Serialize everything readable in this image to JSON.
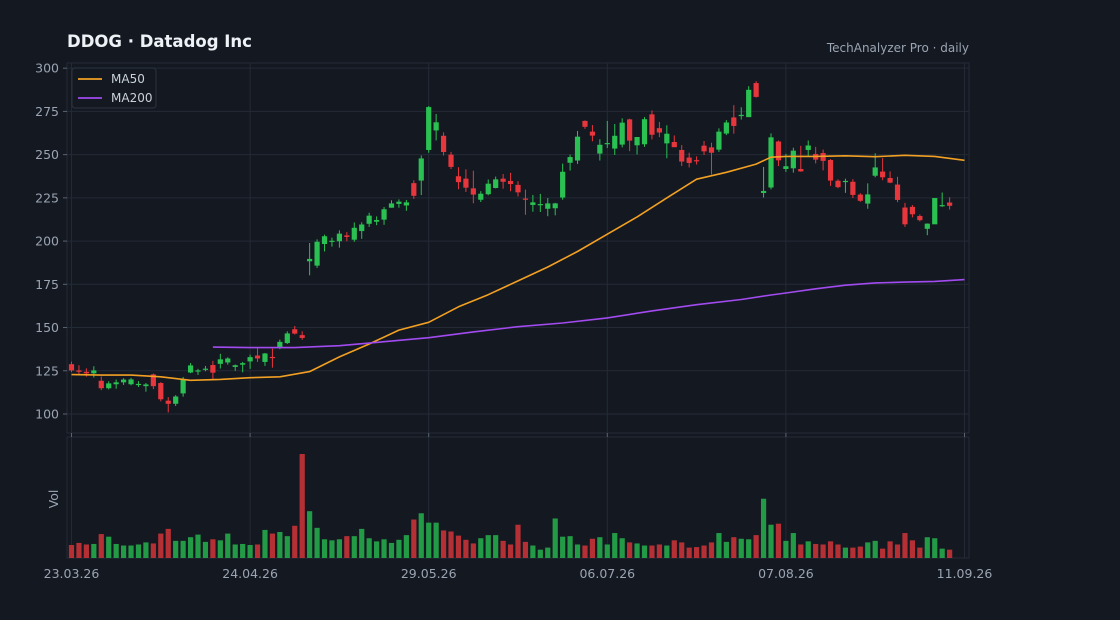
{
  "header": {
    "title": "DDOG  ·  Datadog Inc",
    "source": "TechAnalyzer Pro · daily"
  },
  "colors": {
    "background": "#141821",
    "up": "#2ac152",
    "down": "#e8363d",
    "up_volume": "#239a45",
    "down_volume": "#b53035",
    "ma50": "#f2a023",
    "ma200": "#a24bf0",
    "grid": "#232a36"
  },
  "chart_data": {
    "type": "candlestick",
    "title": "DDOG  ·  Datadog Inc",
    "y_ticks": [
      100,
      125,
      150,
      175,
      200,
      225,
      250,
      275,
      300
    ],
    "ylim": [
      89,
      303
    ],
    "volume_label": "Vol",
    "x_tick_labels": [
      "23.03.26",
      "24.04.26",
      "29.05.26",
      "06.07.26",
      "07.08.26",
      "11.09.26"
    ],
    "x_tick_index": [
      0,
      24,
      48,
      72,
      96,
      120
    ],
    "legend": [
      "MA50",
      "MA200"
    ],
    "legend_position": "top-left",
    "grid": true,
    "ohlc": [
      [
        128.8,
        130.3,
        124.2,
        125.2
      ],
      [
        125.2,
        128.2,
        122.3,
        124.4
      ],
      [
        124.4,
        126.4,
        121.6,
        123.5
      ],
      [
        123.5,
        127.6,
        121.1,
        125.2
      ],
      [
        119.2,
        121.7,
        113.8,
        114.9
      ],
      [
        114.9,
        118.9,
        114.2,
        117.7
      ],
      [
        117.2,
        119.9,
        114.6,
        118.3
      ],
      [
        118.3,
        120.7,
        116.8,
        119.9
      ],
      [
        117.2,
        120.9,
        116.6,
        120.0
      ],
      [
        117.2,
        119.0,
        115.6,
        117.4
      ],
      [
        116.1,
        117.9,
        112.9,
        117.1
      ],
      [
        122.9,
        123.4,
        114.4,
        116.1
      ],
      [
        117.9,
        118.4,
        107.3,
        108.5
      ],
      [
        107.7,
        109.7,
        100.9,
        105.9
      ],
      [
        105.9,
        110.9,
        104.6,
        110.1
      ],
      [
        111.9,
        121.4,
        110.0,
        119.8
      ],
      [
        124.0,
        129.5,
        123.6,
        128.1
      ],
      [
        124.5,
        126.1,
        122.6,
        125.2
      ],
      [
        126.2,
        127.8,
        124.7,
        126.2
      ],
      [
        128.3,
        130.7,
        119.9,
        123.9
      ],
      [
        129.0,
        134.8,
        126.3,
        131.6
      ],
      [
        129.8,
        132.8,
        128.5,
        132.1
      ],
      [
        127.2,
        128.6,
        124.9,
        128.2
      ],
      [
        128.5,
        130.1,
        124.1,
        129.4
      ],
      [
        130.4,
        134.3,
        126.1,
        132.9
      ],
      [
        133.8,
        138.6,
        130.1,
        132.1
      ],
      [
        130.1,
        135.3,
        127.8,
        135.0
      ],
      [
        133.0,
        137.8,
        126.8,
        132.7
      ],
      [
        138.4,
        143.0,
        137.5,
        141.7
      ],
      [
        141.0,
        147.8,
        140.5,
        146.6
      ],
      [
        149.0,
        150.9,
        146.0,
        146.5
      ],
      [
        145.6,
        147.8,
        142.9,
        144.0
      ],
      [
        188.3,
        198.9,
        180.2,
        189.7
      ],
      [
        185.8,
        201.0,
        184.5,
        199.6
      ],
      [
        198.3,
        203.7,
        194.0,
        202.8
      ],
      [
        200.0,
        202.0,
        196.8,
        200.2
      ],
      [
        199.9,
        206.2,
        196.2,
        204.3
      ],
      [
        203.3,
        205.2,
        199.9,
        202.4
      ],
      [
        200.8,
        210.8,
        199.6,
        207.7
      ],
      [
        205.8,
        210.9,
        201.3,
        209.6
      ],
      [
        210.0,
        216.4,
        208.2,
        214.7
      ],
      [
        211.2,
        214.3,
        209.2,
        212.2
      ],
      [
        212.4,
        219.7,
        209.4,
        218.4
      ],
      [
        219.3,
        223.6,
        219.3,
        221.8
      ],
      [
        221.5,
        224.1,
        219.3,
        222.8
      ],
      [
        220.6,
        223.8,
        217.5,
        222.4
      ],
      [
        233.5,
        235.2,
        224.4,
        226.2
      ],
      [
        235.0,
        249.5,
        226.6,
        247.8
      ],
      [
        252.7,
        278.1,
        251.1,
        277.5
      ],
      [
        264.0,
        273.5,
        258.2,
        268.7
      ],
      [
        260.9,
        262.9,
        249.5,
        251.5
      ],
      [
        250.0,
        251.6,
        241.7,
        242.9
      ],
      [
        237.5,
        242.7,
        230.0,
        234.1
      ],
      [
        236.1,
        241.5,
        228.4,
        230.9
      ],
      [
        230.5,
        240.7,
        221.9,
        226.9
      ],
      [
        223.9,
        228.9,
        222.6,
        227.4
      ],
      [
        227.1,
        235.6,
        226.5,
        233.2
      ],
      [
        230.7,
        237.3,
        230.5,
        235.7
      ],
      [
        236.1,
        238.8,
        230.3,
        234.3
      ],
      [
        234.8,
        239.5,
        228.8,
        233.0
      ],
      [
        232.5,
        234.6,
        225.8,
        228.2
      ],
      [
        224.6,
        229.8,
        215.2,
        223.9
      ],
      [
        220.9,
        226.7,
        217.0,
        222.4
      ],
      [
        221.3,
        227.3,
        216.8,
        221.4
      ],
      [
        218.7,
        224.9,
        214.4,
        221.8
      ],
      [
        219.0,
        222.1,
        214.9,
        221.8
      ],
      [
        225.2,
        244.8,
        223.9,
        240.1
      ],
      [
        245.3,
        250.0,
        240.8,
        248.6
      ],
      [
        246.6,
        263.7,
        244.6,
        260.4
      ],
      [
        269.5,
        269.8,
        264.9,
        266.1
      ],
      [
        263.3,
        267.1,
        257.7,
        261.0
      ],
      [
        250.6,
        258.9,
        246.6,
        255.7
      ],
      [
        256.2,
        269.5,
        253.8,
        256.7
      ],
      [
        253.5,
        267.7,
        249.8,
        260.9
      ],
      [
        255.8,
        271.0,
        254.2,
        268.5
      ],
      [
        270.4,
        270.8,
        252.0,
        258.1
      ],
      [
        255.4,
        258.9,
        250.1,
        260.2
      ],
      [
        256.0,
        271.7,
        254.5,
        270.5
      ],
      [
        273.3,
        275.6,
        258.8,
        261.5
      ],
      [
        265.3,
        268.9,
        260.1,
        262.8
      ],
      [
        256.5,
        267.0,
        247.9,
        262.1
      ],
      [
        257.3,
        261.1,
        254.4,
        254.3
      ],
      [
        252.7,
        255.5,
        243.4,
        246.0
      ],
      [
        248.3,
        251.1,
        242.6,
        245.2
      ],
      [
        246.8,
        249.0,
        244.3,
        246.5
      ],
      [
        255.2,
        257.9,
        249.8,
        251.9
      ],
      [
        254.2,
        256.9,
        238.5,
        251.1
      ],
      [
        252.9,
        265.2,
        251.6,
        263.3
      ],
      [
        262.2,
        270.0,
        261.3,
        268.6
      ],
      [
        271.5,
        278.6,
        262.1,
        266.6
      ],
      [
        272.4,
        277.4,
        270.3,
        273.0
      ],
      [
        271.7,
        289.6,
        271.7,
        287.5
      ],
      [
        291.4,
        292.5,
        283.0,
        283.4
      ],
      [
        227.8,
        242.9,
        225.2,
        229.0
      ],
      [
        231.0,
        262.3,
        229.9,
        260.0
      ],
      [
        257.6,
        258.1,
        243.4,
        246.7
      ],
      [
        241.7,
        250.5,
        240.0,
        243.3
      ],
      [
        242.1,
        254.0,
        239.6,
        252.3
      ],
      [
        241.7,
        255.1,
        240.1,
        240.3
      ],
      [
        252.7,
        258.2,
        249.2,
        255.3
      ],
      [
        250.4,
        254.5,
        244.9,
        247.1
      ],
      [
        250.9,
        252.9,
        240.9,
        246.4
      ],
      [
        246.9,
        247.4,
        231.9,
        235.0
      ],
      [
        234.9,
        235.7,
        230.6,
        231.2
      ],
      [
        234.4,
        236.1,
        227.9,
        234.8
      ],
      [
        234.3,
        235.8,
        224.9,
        226.7
      ],
      [
        226.9,
        227.7,
        222.7,
        223.3
      ],
      [
        221.7,
        233.4,
        218.7,
        227.0
      ],
      [
        237.8,
        250.8,
        236.9,
        242.6
      ],
      [
        240.2,
        248.0,
        235.2,
        236.9
      ],
      [
        236.5,
        240.3,
        233.5,
        233.8
      ],
      [
        232.7,
        237.2,
        222.5,
        223.8
      ],
      [
        219.4,
        222.1,
        208.2,
        209.7
      ],
      [
        219.8,
        220.8,
        213.7,
        215.5
      ],
      [
        214.5,
        215.4,
        211.4,
        212.1
      ],
      [
        207.1,
        210.2,
        203.4,
        210.1
      ],
      [
        209.7,
        224.7,
        210.1,
        224.9
      ],
      [
        220.7,
        228.1,
        219.8,
        220.8
      ],
      [
        222.3,
        225.3,
        218.2,
        220.4
      ]
    ],
    "volume": [
      0.125,
      0.145,
      0.13,
      0.135,
      0.23,
      0.205,
      0.135,
      0.12,
      0.12,
      0.13,
      0.15,
      0.14,
      0.235,
      0.28,
      0.165,
      0.165,
      0.2,
      0.225,
      0.155,
      0.18,
      0.17,
      0.235,
      0.13,
      0.135,
      0.125,
      0.13,
      0.27,
      0.235,
      0.25,
      0.21,
      0.31,
      1.0,
      0.45,
      0.29,
      0.18,
      0.17,
      0.18,
      0.21,
      0.21,
      0.28,
      0.19,
      0.16,
      0.18,
      0.145,
      0.175,
      0.22,
      0.37,
      0.43,
      0.34,
      0.34,
      0.265,
      0.255,
      0.215,
      0.175,
      0.14,
      0.19,
      0.22,
      0.22,
      0.165,
      0.13,
      0.32,
      0.155,
      0.12,
      0.08,
      0.1,
      0.38,
      0.205,
      0.21,
      0.13,
      0.12,
      0.185,
      0.2,
      0.13,
      0.24,
      0.19,
      0.15,
      0.14,
      0.12,
      0.12,
      0.13,
      0.12,
      0.17,
      0.15,
      0.1,
      0.105,
      0.12,
      0.15,
      0.24,
      0.155,
      0.2,
      0.185,
      0.18,
      0.22,
      0.57,
      0.32,
      0.33,
      0.165,
      0.24,
      0.13,
      0.16,
      0.135,
      0.13,
      0.16,
      0.13,
      0.1,
      0.1,
      0.11,
      0.15,
      0.165,
      0.09,
      0.16,
      0.13,
      0.24,
      0.17,
      0.1,
      0.2,
      0.19,
      0.09,
      0.08
    ],
    "series": [
      {
        "name": "MA50",
        "index": [
          0,
          4,
          8,
          12,
          16,
          20,
          24,
          28,
          32,
          36,
          40,
          44,
          48,
          52,
          56,
          60,
          64,
          68,
          72,
          76,
          80,
          84,
          88,
          92,
          94,
          96,
          100,
          104,
          108,
          112,
          116,
          120
        ],
        "values": [
          122.8,
          122.5,
          122.5,
          121.5,
          119.5,
          120,
          121,
          121.5,
          124.5,
          133,
          140.5,
          148.5,
          153,
          162,
          169,
          177,
          185,
          194,
          204,
          214,
          225,
          235.8,
          239.8,
          244.5,
          248.5,
          249,
          249,
          249.3,
          248.8,
          249.6,
          249,
          246.7
        ]
      },
      {
        "name": "MA200",
        "index": [
          19,
          24,
          30,
          36,
          42,
          48,
          54,
          60,
          66,
          72,
          78,
          84,
          90,
          94,
          96,
          100,
          104,
          108,
          112,
          116,
          120
        ],
        "values": [
          138.7,
          138.4,
          138.4,
          139.5,
          141.8,
          144.1,
          147.5,
          150.5,
          152.6,
          155.6,
          159.6,
          163.2,
          166.2,
          168.8,
          170,
          172.4,
          174.5,
          175.8,
          176.3,
          176.7,
          177.7
        ]
      }
    ]
  }
}
